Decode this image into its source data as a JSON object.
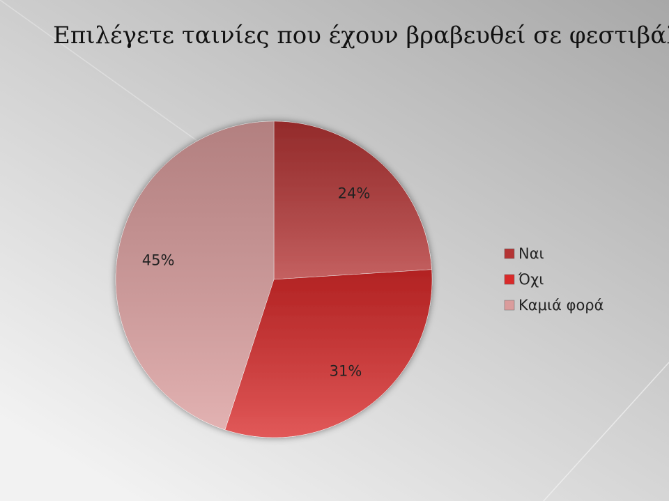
{
  "chart_data": {
    "type": "pie",
    "title": "Επιλέγετε ταινίες που έχουν βραβευθεί σε φεστιβάλ;",
    "categories": [
      "Ναι",
      "Όχι",
      "Καμιά φορά"
    ],
    "values": [
      24,
      31,
      45
    ],
    "value_labels": [
      "24%",
      "31%",
      "45%"
    ],
    "colors": [
      "#b43434",
      "#d92a2a",
      "#da9c9c"
    ],
    "legend": "right"
  }
}
